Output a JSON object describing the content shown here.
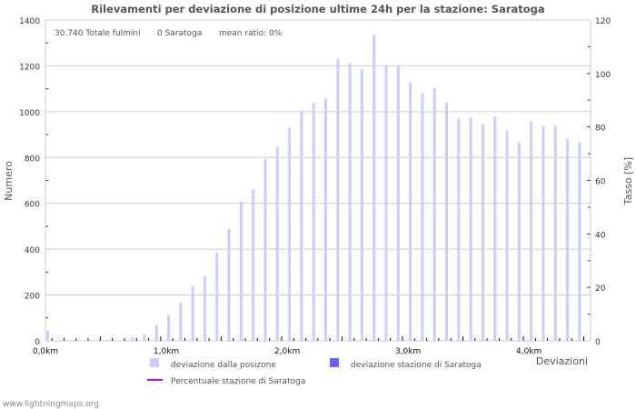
{
  "chart_data": {
    "type": "bar",
    "title": "Rilevamenti per deviazione di posizione ultime 24h per la stazione: Saratoga",
    "xlabel": "Deviazioni",
    "ylabel": "Numero",
    "y2label": "Tasso [%]",
    "xlim": [
      0,
      4.51
    ],
    "ylim": [
      0,
      1400
    ],
    "y2lim": [
      0,
      120
    ],
    "grid": true,
    "x_tick_labels": [
      "0,0km",
      "1,0km",
      "2,0km",
      "3,0km",
      "4,0km"
    ],
    "x_tick_values": [
      0,
      1,
      2,
      3,
      4
    ],
    "y_tick_values": [
      0,
      200,
      400,
      600,
      800,
      1000,
      1200,
      1400
    ],
    "y2_tick_values": [
      0,
      20,
      40,
      60,
      80,
      100,
      120
    ],
    "x": [
      0.0,
      0.1,
      0.2,
      0.3,
      0.4,
      0.5,
      0.6,
      0.7,
      0.8,
      0.9,
      1.0,
      1.1,
      1.2,
      1.3,
      1.4,
      1.5,
      1.6,
      1.7,
      1.8,
      1.9,
      2.0,
      2.1,
      2.2,
      2.3,
      2.4,
      2.5,
      2.6,
      2.7,
      2.8,
      2.9,
      3.0,
      3.1,
      3.2,
      3.3,
      3.4,
      3.5,
      3.6,
      3.7,
      3.8,
      3.9,
      4.0,
      4.1,
      4.2,
      4.3,
      4.4
    ],
    "series": [
      {
        "name": "deviazione dalla posizone",
        "color": "#ccccff",
        "type": "bar",
        "values": [
          45,
          0,
          3,
          0,
          3,
          5,
          0,
          15,
          29,
          69,
          112,
          168,
          240,
          282,
          385,
          488,
          607,
          660,
          795,
          846,
          930,
          1005,
          1038,
          1057,
          1232,
          1212,
          1183,
          1335,
          1200,
          1200,
          1128,
          1080,
          1104,
          1038,
          970,
          974,
          946,
          978,
          918,
          866,
          958,
          938,
          938,
          882,
          866
        ]
      },
      {
        "name": "deviazione stazione di Saratoga",
        "color": "#6666ff",
        "type": "bar",
        "values": [
          0,
          0,
          0,
          0,
          0,
          0,
          0,
          0,
          0,
          0,
          0,
          0,
          0,
          0,
          0,
          0,
          0,
          0,
          0,
          0,
          0,
          0,
          0,
          0,
          0,
          0,
          0,
          0,
          0,
          0,
          0,
          0,
          0,
          0,
          0,
          0,
          0,
          0,
          0,
          0,
          0,
          0,
          0,
          0,
          0
        ]
      },
      {
        "name": "Percentuale stazione di Saratoga",
        "color": "#cc00ff",
        "type": "line",
        "axis": "right",
        "values": [
          0,
          0,
          0,
          0,
          0,
          0,
          0,
          0,
          0,
          0,
          0,
          0,
          0,
          0,
          0,
          0,
          0,
          0,
          0,
          0,
          0,
          0,
          0,
          0,
          0,
          0,
          0,
          0,
          0,
          0,
          0,
          0,
          0,
          0,
          0,
          0,
          0,
          0,
          0,
          0,
          0,
          0,
          0,
          0,
          0
        ]
      }
    ],
    "annotations": {
      "total": "30.740 Totale fulmini",
      "station": "0 Saratoga",
      "ratio": "mean ratio: 0%"
    }
  },
  "footer": "www.lightningmaps.org"
}
